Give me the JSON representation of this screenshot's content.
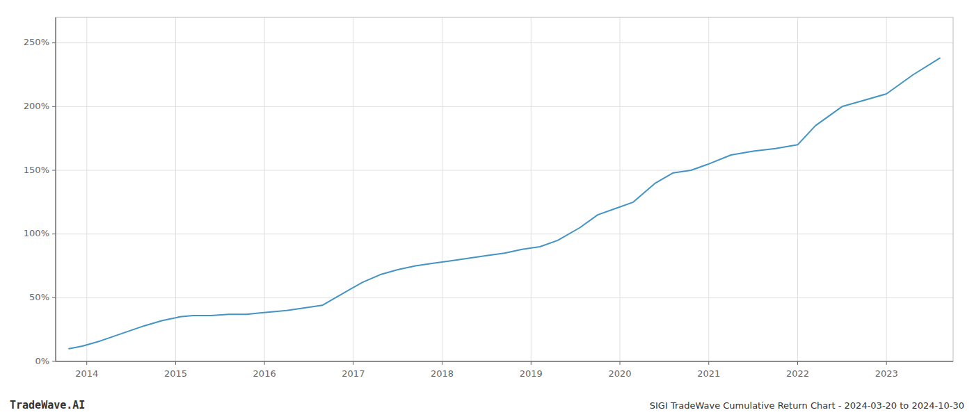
{
  "chart_data": {
    "type": "line",
    "title": "SIGI TradeWave Cumulative Return Chart - 2024-03-20 to 2024-10-30",
    "annotations": [
      "TradeWave.AI"
    ],
    "color": "#4393c3",
    "grid": true,
    "x": [
      2013.8,
      2013.95,
      2014.15,
      2014.4,
      2014.65,
      2014.85,
      2015.05,
      2015.2,
      2015.4,
      2015.6,
      2015.8,
      2015.95,
      2016.1,
      2016.25,
      2016.45,
      2016.65,
      2016.85,
      2017.1,
      2017.3,
      2017.5,
      2017.7,
      2017.9,
      2018.1,
      2018.3,
      2018.5,
      2018.7,
      2018.9,
      2019.1,
      2019.3,
      2019.55,
      2019.75,
      2019.95,
      2020.15,
      2020.4,
      2020.6,
      2020.8,
      2021.0,
      2021.25,
      2021.5,
      2021.75,
      2022.0,
      2022.2,
      2022.5,
      2022.75,
      2023.0,
      2023.3,
      2023.6
    ],
    "values": [
      10,
      12,
      16,
      22,
      28,
      32,
      35,
      36,
      36,
      37,
      37,
      38,
      39,
      40,
      42,
      44,
      52,
      62,
      68,
      72,
      75,
      77,
      79,
      81,
      83,
      85,
      88,
      90,
      95,
      105,
      115,
      120,
      125,
      140,
      148,
      150,
      155,
      162,
      165,
      167,
      170,
      185,
      200,
      205,
      210,
      225,
      238
    ],
    "xlim": [
      2013.65,
      2023.75
    ],
    "xticks": [
      2014,
      2015,
      2016,
      2017,
      2018,
      2019,
      2020,
      2021,
      2022,
      2023
    ],
    "ylim": [
      0,
      270
    ],
    "yticks": [
      {
        "value": 0,
        "label": "0%"
      },
      {
        "value": 50,
        "label": "50%"
      },
      {
        "value": 100,
        "label": "100%"
      },
      {
        "value": 150,
        "label": "150%"
      },
      {
        "value": 200,
        "label": "200%"
      },
      {
        "value": 250,
        "label": "250%"
      }
    ]
  }
}
